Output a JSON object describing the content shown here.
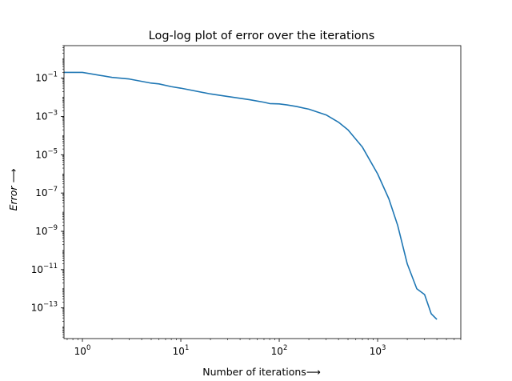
{
  "chart_data": {
    "type": "line",
    "title": "Log-log plot of error over the iterations",
    "xlabel": "Number of iterations⟶",
    "ylabel": "Error ⟶",
    "xscale": "log",
    "yscale": "log",
    "xlim": [
      0.65,
      7000
    ],
    "ylim": [
      2.5e-15,
      5
    ],
    "grid": false,
    "legend": "none",
    "x_ticks": [
      {
        "value": 1,
        "base": "10",
        "exp": "0"
      },
      {
        "value": 10,
        "base": "10",
        "exp": "1"
      },
      {
        "value": 100,
        "base": "10",
        "exp": "2"
      },
      {
        "value": 1000,
        "base": "10",
        "exp": "3"
      }
    ],
    "y_ticks": [
      {
        "value": 0.1,
        "base": "10",
        "exp": "−1"
      },
      {
        "value": 0.001,
        "base": "10",
        "exp": "−3"
      },
      {
        "value": 1e-05,
        "base": "10",
        "exp": "−5"
      },
      {
        "value": 1e-07,
        "base": "10",
        "exp": "−7"
      },
      {
        "value": 1e-09,
        "base": "10",
        "exp": "−9"
      },
      {
        "value": 1e-11,
        "base": "10",
        "exp": "−11"
      },
      {
        "value": 1e-13,
        "base": "10",
        "exp": "−13"
      }
    ],
    "series": [
      {
        "color": "#1f77b4",
        "x": [
          0.65,
          1,
          2,
          3,
          5,
          6,
          8,
          10,
          20,
          30,
          50,
          70,
          80,
          100,
          120,
          150,
          200,
          300,
          400,
          500,
          700,
          1000,
          1300,
          1600,
          2000,
          2500,
          3000,
          3500,
          4000
        ],
        "y": [
          0.2,
          0.2,
          0.11,
          0.09,
          0.055,
          0.05,
          0.036,
          0.03,
          0.015,
          0.011,
          0.0075,
          0.0055,
          0.0047,
          0.0045,
          0.004,
          0.0033,
          0.0024,
          0.0012,
          0.0005,
          0.0002,
          2.5e-05,
          1e-06,
          5e-08,
          2e-09,
          2e-11,
          1e-12,
          5e-13,
          5e-14,
          2.5e-14
        ]
      }
    ]
  }
}
